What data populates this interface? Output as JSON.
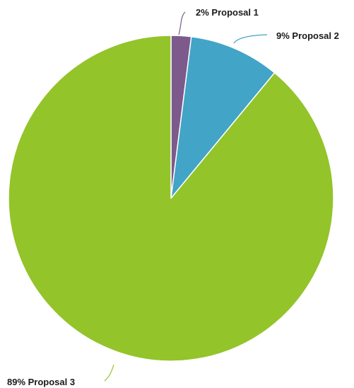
{
  "chart_data": {
    "type": "pie",
    "slices": [
      {
        "label": "2% Proposal 1",
        "value": 2,
        "color": "#7d5a8c"
      },
      {
        "label": "9% Proposal 2",
        "value": 9,
        "color": "#42a4c6"
      },
      {
        "label": "89% Proposal 3",
        "value": 89,
        "color": "#93c42a"
      }
    ],
    "start_angle_deg": 0,
    "direction": "clockwise",
    "legend": "none"
  }
}
